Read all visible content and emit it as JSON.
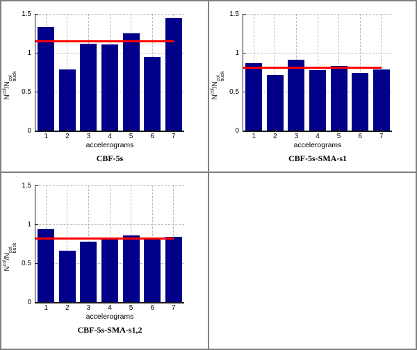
{
  "figure": {
    "xlabel": "accelerograms",
    "ylabel": {
      "base1": "N",
      "sup1": "col",
      "base2": "/N",
      "sup2": "col",
      "sub2": "buck"
    },
    "colors": {
      "bar": "#00008B",
      "ref_line": "#FF0000",
      "grid": "#B9B9B9",
      "axis": "#1A1A1A",
      "frame": "#7F7F7F",
      "background": "#FFFFFF"
    }
  },
  "chart_data": [
    {
      "type": "bar",
      "title": "CBF-5s",
      "xlabel": "accelerograms",
      "categories": [
        "1",
        "2",
        "3",
        "4",
        "5",
        "6",
        "7"
      ],
      "values": [
        1.33,
        0.79,
        1.12,
        1.11,
        1.25,
        0.95,
        1.45
      ],
      "ref_line": 1.15,
      "ylim": [
        0,
        1.5
      ],
      "yticks": [
        "0",
        "0.5",
        "1",
        "1.5"
      ],
      "grid": true,
      "legend": false
    },
    {
      "type": "bar",
      "title": "CBF-5s-SMA-s1",
      "xlabel": "accelerograms",
      "categories": [
        "1",
        "2",
        "3",
        "4",
        "5",
        "6",
        "7"
      ],
      "values": [
        0.87,
        0.71,
        0.91,
        0.78,
        0.83,
        0.74,
        0.79
      ],
      "ref_line": 0.81,
      "ylim": [
        0,
        1.5
      ],
      "yticks": [
        "0",
        "0.5",
        "1",
        "1.5"
      ],
      "grid": true,
      "legend": false
    },
    {
      "type": "bar",
      "title": "CBF-5s-SMA-s1,2",
      "xlabel": "accelerograms",
      "categories": [
        "1",
        "2",
        "3",
        "4",
        "5",
        "6",
        "7"
      ],
      "values": [
        0.94,
        0.66,
        0.78,
        0.81,
        0.86,
        0.81,
        0.84
      ],
      "ref_line": 0.82,
      "ylim": [
        0,
        1.5
      ],
      "yticks": [
        "0",
        "0.5",
        "1",
        "1.5"
      ],
      "grid": true,
      "legend": false
    }
  ]
}
